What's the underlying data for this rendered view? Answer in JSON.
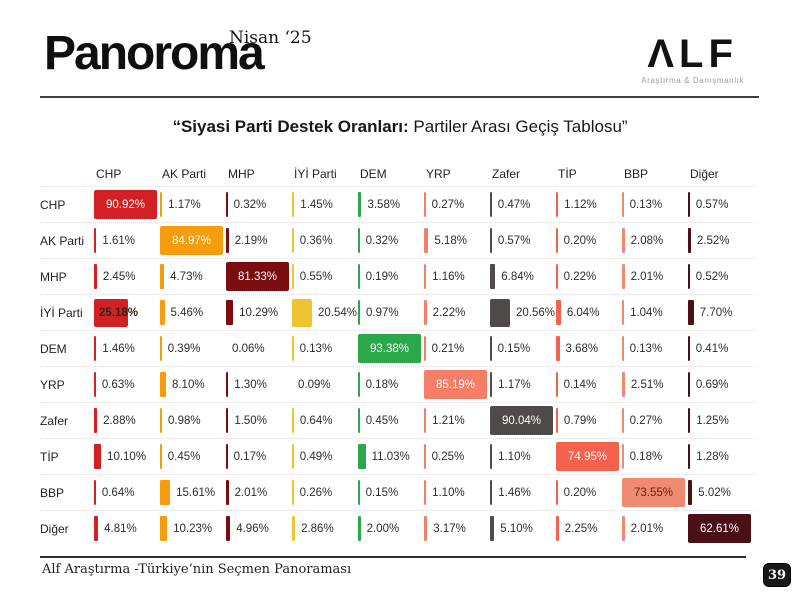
{
  "masthead": {
    "title": "Panoroma",
    "issue": "Nisan ‘25"
  },
  "brand": {
    "logo": "ΛLF",
    "tagline": "Araştırma & Danışmanlık"
  },
  "slide_title": {
    "lead": "“Siyasi Parti Destek Oranları:",
    "rest": " Partiler Arası Geçiş Tablosu”"
  },
  "chart_data": {
    "type": "table",
    "title": "Siyasi Parti Destek Oranları: Partiler Arası Geçiş Tablosu",
    "unit": "%",
    "columns": [
      "CHP",
      "AK Parti",
      "MHP",
      "İYİ Parti",
      "DEM",
      "YRP",
      "Zafer",
      "TİP",
      "BBP",
      "Diğer"
    ],
    "rows": [
      {
        "label": "CHP",
        "values": [
          90.92,
          1.17,
          0.32,
          1.45,
          3.58,
          0.27,
          0.47,
          1.12,
          0.13,
          0.57
        ]
      },
      {
        "label": "AK Parti",
        "values": [
          1.61,
          84.97,
          2.19,
          0.36,
          0.32,
          5.18,
          0.57,
          0.2,
          2.08,
          2.52
        ]
      },
      {
        "label": "MHP",
        "values": [
          2.45,
          4.73,
          81.33,
          0.55,
          0.19,
          1.16,
          6.84,
          0.22,
          2.01,
          0.52
        ]
      },
      {
        "label": "İYİ Parti",
        "values": [
          25.18,
          5.46,
          10.29,
          20.54,
          0.97,
          2.22,
          20.56,
          6.04,
          1.04,
          7.7
        ]
      },
      {
        "label": "DEM",
        "values": [
          1.46,
          0.39,
          0.06,
          0.13,
          93.38,
          0.21,
          0.15,
          3.68,
          0.13,
          0.41
        ]
      },
      {
        "label": "YRP",
        "values": [
          0.63,
          8.1,
          1.3,
          0.09,
          0.18,
          85.19,
          1.17,
          0.14,
          2.51,
          0.69
        ]
      },
      {
        "label": "Zafer",
        "values": [
          2.88,
          0.98,
          1.5,
          0.64,
          0.45,
          1.21,
          90.04,
          0.79,
          0.27,
          1.25
        ]
      },
      {
        "label": "TİP",
        "values": [
          10.1,
          0.45,
          0.17,
          0.49,
          11.03,
          0.25,
          1.1,
          74.95,
          0.18,
          1.28
        ]
      },
      {
        "label": "BBP",
        "values": [
          0.64,
          15.61,
          2.01,
          0.26,
          0.15,
          1.1,
          1.46,
          0.2,
          73.55,
          5.02
        ]
      },
      {
        "label": "Diğer",
        "values": [
          4.81,
          10.23,
          4.96,
          2.86,
          2.0,
          3.17,
          5.1,
          2.25,
          2.01,
          62.61
        ]
      }
    ]
  },
  "style": {
    "column_colors": [
      "#D32025",
      "#F79C0C",
      "#7B0D11",
      "#F0C330",
      "#2BA84A",
      "#F57F66",
      "#4F4B4A",
      "#F4624D",
      "#F08A70",
      "#4A1016"
    ],
    "bbp_diag_text": "#5B241B"
  },
  "footer": {
    "source": "Alf Araştırma -Türkiye’nin Seçmen Panoraması",
    "page": "39"
  }
}
